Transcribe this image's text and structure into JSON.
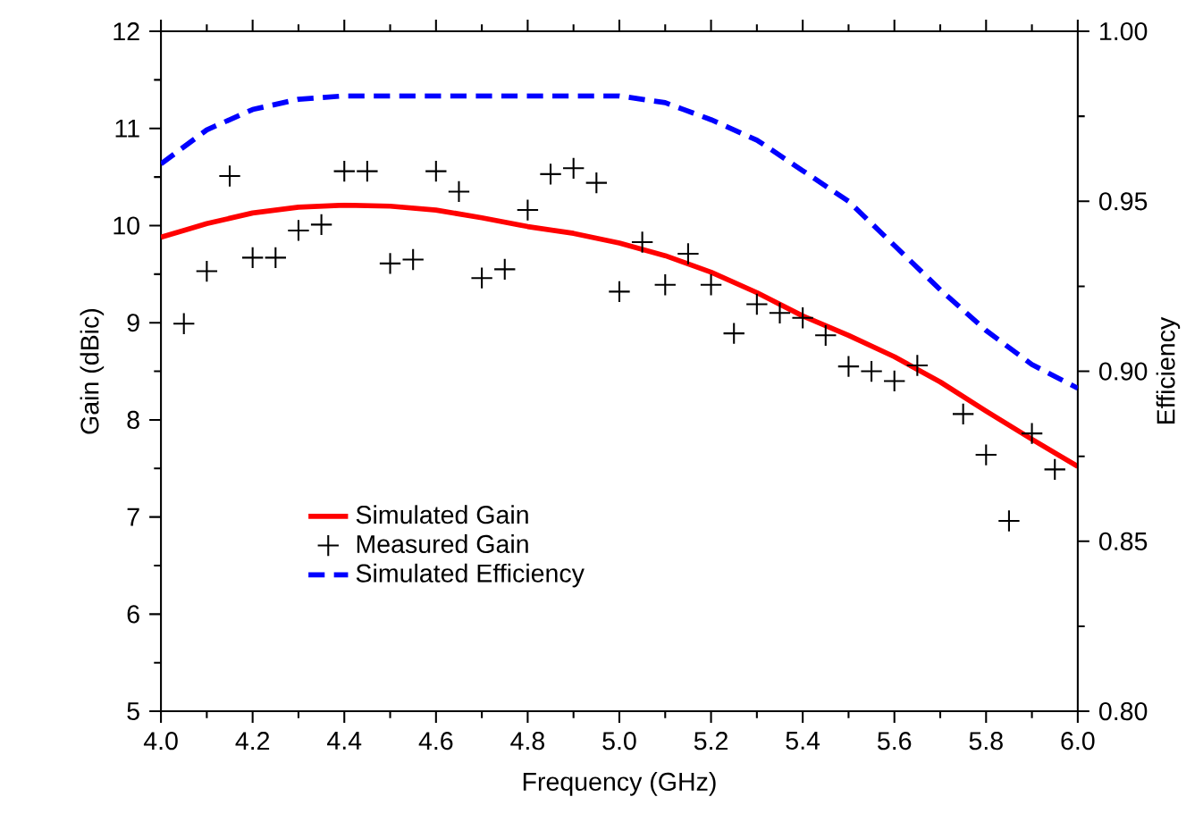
{
  "chart_data": {
    "type": "line",
    "xlabel": "Frequency (GHz)",
    "ylabel": "Gain (dBic)",
    "y2label": "Efficiency",
    "xlim": [
      4,
      6
    ],
    "ylim": [
      5,
      12
    ],
    "y2lim": [
      0.8,
      1.0
    ],
    "xticks": [
      {
        "value": 4,
        "label": "4.0"
      },
      {
        "value": 4.2,
        "label": "4.2"
      },
      {
        "value": 4.4,
        "label": "4.4"
      },
      {
        "value": 4.6,
        "label": "4.6"
      },
      {
        "value": 4.8,
        "label": "4.8"
      },
      {
        "value": 5,
        "label": "5.0"
      },
      {
        "value": 5.2,
        "label": "5.2"
      },
      {
        "value": 5.4,
        "label": "5.4"
      },
      {
        "value": 5.6,
        "label": "5.6"
      },
      {
        "value": 5.8,
        "label": "5.8"
      },
      {
        "value": 6,
        "label": "6.0"
      }
    ],
    "yticks": [
      5,
      6,
      7,
      8,
      9,
      10,
      11,
      12
    ],
    "y2ticks": [
      {
        "value": 0.8,
        "label": "0.80"
      },
      {
        "value": 0.85,
        "label": "0.85"
      },
      {
        "value": 0.9,
        "label": "0.90"
      },
      {
        "value": 0.95,
        "label": "0.95"
      },
      {
        "value": 1.0,
        "label": "1.00"
      }
    ],
    "grid": false,
    "legend": "bottom left",
    "series": [
      {
        "name": "Simulated Gain",
        "color": "#ff0000",
        "line_style": "solid",
        "marker": "none",
        "x": [
          4.0,
          4.1,
          4.2,
          4.3,
          4.4,
          4.5,
          4.6,
          4.7,
          4.8,
          4.9,
          5.0,
          5.1,
          5.2,
          5.3,
          5.4,
          5.5,
          5.6,
          5.7,
          5.8,
          5.9,
          6.0
        ],
        "values": [
          9.88,
          10.02,
          10.13,
          10.19,
          10.21,
          10.2,
          10.16,
          10.08,
          9.99,
          9.92,
          9.82,
          9.69,
          9.52,
          9.31,
          9.07,
          8.87,
          8.65,
          8.39,
          8.09,
          7.8,
          7.52
        ]
      },
      {
        "name": "Measured Gain",
        "type": "scatter",
        "color": "#000000",
        "marker": "cross",
        "x": [
          4.05,
          4.1,
          4.15,
          4.2,
          4.25,
          4.3,
          4.35,
          4.4,
          4.45,
          4.5,
          4.55,
          4.6,
          4.65,
          4.7,
          4.75,
          4.8,
          4.85,
          4.9,
          4.95,
          5.0,
          5.05,
          5.1,
          5.15,
          5.2,
          5.25,
          5.3,
          5.35,
          5.4,
          5.45,
          5.5,
          5.55,
          5.6,
          5.65,
          5.75,
          5.8,
          5.85,
          5.9,
          5.95
        ],
        "values": [
          8.99,
          9.53,
          10.51,
          9.67,
          9.67,
          9.95,
          10.01,
          10.56,
          10.56,
          9.61,
          9.65,
          10.56,
          10.35,
          9.46,
          9.55,
          10.16,
          10.53,
          10.59,
          10.44,
          9.32,
          9.83,
          9.39,
          9.71,
          9.39,
          8.89,
          9.19,
          9.1,
          9.05,
          8.87,
          8.55,
          8.5,
          8.4,
          8.56,
          8.06,
          7.64,
          6.96,
          7.86,
          7.49
        ]
      },
      {
        "name": "Simulated Efficiency",
        "axis": "y2",
        "color": "#0000ff",
        "line_style": "dashed",
        "marker": "none",
        "x": [
          4.0,
          4.1,
          4.2,
          4.3,
          4.4,
          4.5,
          4.6,
          4.7,
          4.8,
          4.9,
          5.0,
          5.1,
          5.2,
          5.3,
          5.4,
          5.5,
          5.6,
          5.7,
          5.8,
          5.9,
          6.0
        ],
        "values": [
          0.961,
          0.971,
          0.977,
          0.98,
          0.981,
          0.981,
          0.981,
          0.981,
          0.981,
          0.981,
          0.981,
          0.979,
          0.974,
          0.968,
          0.959,
          0.95,
          0.937,
          0.924,
          0.912,
          0.902,
          0.895
        ]
      }
    ]
  }
}
